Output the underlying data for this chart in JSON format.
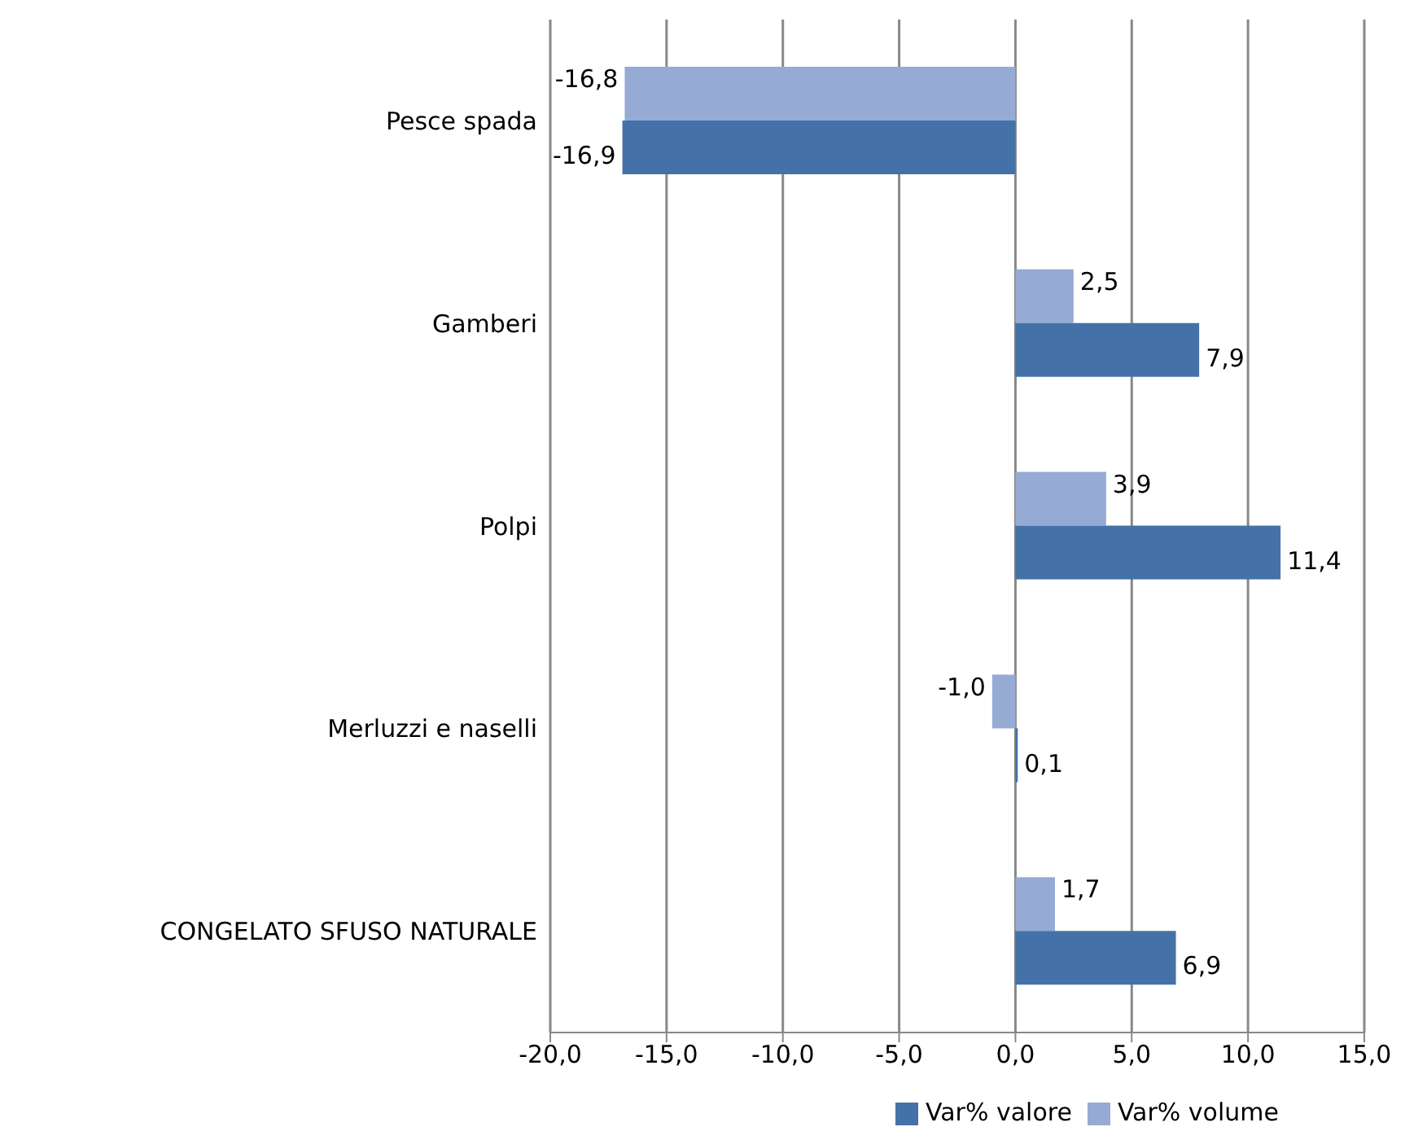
{
  "chart_data": {
    "type": "bar",
    "orientation": "horizontal",
    "categories": [
      "Pesce spada",
      "Gamberi",
      "Polpi",
      "Merluzzi e naselli",
      "CONGELATO SFUSO NATURALE"
    ],
    "series": [
      {
        "name": "Var% volume",
        "color": "#95abd4",
        "values": [
          -16.8,
          2.5,
          3.9,
          -1.0,
          1.7
        ],
        "value_labels": [
          "-16,8",
          "2,5",
          "3,9",
          "-1,0",
          "1,7"
        ]
      },
      {
        "name": "Var% valore",
        "color": "#4472a8",
        "values": [
          -16.9,
          7.9,
          11.4,
          0.1,
          6.9
        ],
        "value_labels": [
          "-16,9",
          "7,9",
          "11,4",
          "0,1",
          "6,9"
        ]
      }
    ],
    "xlim": [
      -20,
      15
    ],
    "xticks": [
      {
        "value": -20,
        "label": "-20,0"
      },
      {
        "value": -15,
        "label": "-15,0"
      },
      {
        "value": -10,
        "label": "-10,0"
      },
      {
        "value": -5,
        "label": "-5,0"
      },
      {
        "value": 0,
        "label": "0,0"
      },
      {
        "value": 5,
        "label": "5,0"
      },
      {
        "value": 10,
        "label": "10,0"
      },
      {
        "value": 15,
        "label": "15,0"
      }
    ],
    "grid": "x",
    "legend": "bottom"
  }
}
